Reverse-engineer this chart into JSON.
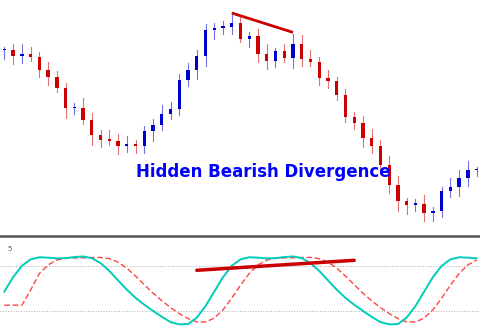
{
  "title": "Hidden Bearish Divergence",
  "title_color": "#0000ff",
  "title_fontsize": 12,
  "bg_color": "#ffffff",
  "candle_panel_bg": "#ffffff",
  "osc_panel_bg": "#ffffff",
  "divider_color": "#555555",
  "osc_line_color": "#00ccbb",
  "osc_signal_color": "#ff4444",
  "osc_upper_dotted": 0.72,
  "osc_lower_dotted": 0.18,
  "osc_line_lw": 1.4,
  "osc_signal_lw": 1.0,
  "div_line_color": "#cc0000",
  "div_line_lw": 2.0
}
